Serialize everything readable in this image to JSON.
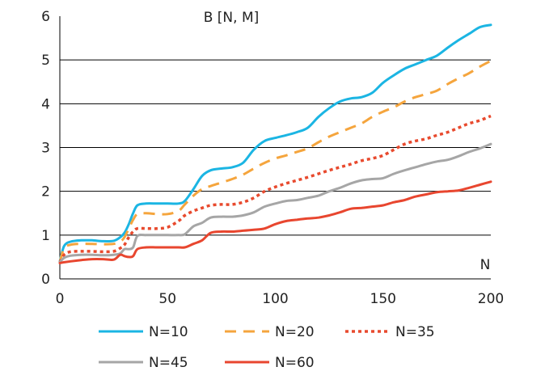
{
  "chart_data": {
    "type": "line",
    "title": "B [N, M]",
    "xlabel": "N",
    "ylabel": "",
    "xlim": [
      0,
      200
    ],
    "ylim": [
      0,
      6
    ],
    "xticks": [
      0,
      50,
      100,
      150,
      200
    ],
    "yticks": [
      0,
      1,
      2,
      3,
      4,
      5,
      6
    ],
    "grid": "horizontal",
    "legend_position": "bottom",
    "series": [
      {
        "name": "N=10",
        "color": "#1BB5E3",
        "dash": "solid",
        "x": [
          0,
          2,
          5,
          10,
          15,
          20,
          25,
          28,
          30,
          32,
          34,
          36,
          40,
          45,
          50,
          55,
          58,
          62,
          66,
          70,
          75,
          80,
          85,
          90,
          95,
          100,
          105,
          110,
          115,
          120,
          125,
          130,
          135,
          140,
          145,
          150,
          155,
          160,
          165,
          170,
          175,
          180,
          185,
          190,
          195,
          200
        ],
        "values": [
          0.4,
          0.75,
          0.85,
          0.88,
          0.88,
          0.86,
          0.87,
          0.95,
          1.05,
          1.25,
          1.5,
          1.68,
          1.72,
          1.72,
          1.72,
          1.72,
          1.78,
          2.05,
          2.35,
          2.48,
          2.52,
          2.55,
          2.65,
          2.95,
          3.15,
          3.22,
          3.28,
          3.35,
          3.45,
          3.7,
          3.9,
          4.05,
          4.12,
          4.15,
          4.25,
          4.48,
          4.65,
          4.8,
          4.9,
          5.0,
          5.1,
          5.28,
          5.45,
          5.6,
          5.75,
          5.8
        ]
      },
      {
        "name": "N=20",
        "color": "#F5A53D",
        "dash": "long-dash",
        "x": [
          0,
          2,
          5,
          10,
          15,
          20,
          25,
          28,
          30,
          32,
          34,
          36,
          40,
          45,
          50,
          55,
          58,
          62,
          66,
          70,
          75,
          80,
          85,
          90,
          95,
          100,
          105,
          110,
          115,
          120,
          125,
          130,
          135,
          140,
          145,
          150,
          155,
          160,
          165,
          170,
          175,
          180,
          185,
          190,
          195,
          200
        ],
        "values": [
          0.38,
          0.7,
          0.78,
          0.8,
          0.8,
          0.79,
          0.8,
          0.85,
          0.95,
          1.15,
          1.35,
          1.48,
          1.5,
          1.48,
          1.48,
          1.55,
          1.7,
          1.9,
          2.05,
          2.12,
          2.2,
          2.28,
          2.38,
          2.52,
          2.65,
          2.75,
          2.82,
          2.9,
          2.98,
          3.12,
          3.25,
          3.35,
          3.45,
          3.55,
          3.7,
          3.82,
          3.92,
          4.05,
          4.15,
          4.22,
          4.3,
          4.45,
          4.58,
          4.7,
          4.85,
          4.98
        ]
      },
      {
        "name": "N=35",
        "color": "#E84A2E",
        "dash": "dotted",
        "x": [
          0,
          2,
          5,
          10,
          15,
          20,
          25,
          28,
          30,
          32,
          34,
          36,
          40,
          45,
          50,
          55,
          58,
          62,
          66,
          70,
          75,
          80,
          85,
          90,
          95,
          100,
          105,
          110,
          115,
          120,
          125,
          130,
          135,
          140,
          145,
          150,
          155,
          160,
          165,
          170,
          175,
          180,
          185,
          190,
          195,
          200
        ],
        "values": [
          0.38,
          0.55,
          0.62,
          0.63,
          0.63,
          0.62,
          0.63,
          0.7,
          0.78,
          0.95,
          1.08,
          1.15,
          1.15,
          1.15,
          1.18,
          1.32,
          1.45,
          1.55,
          1.62,
          1.68,
          1.7,
          1.7,
          1.75,
          1.85,
          2.0,
          2.1,
          2.18,
          2.25,
          2.32,
          2.4,
          2.48,
          2.55,
          2.62,
          2.7,
          2.75,
          2.82,
          2.95,
          3.08,
          3.15,
          3.2,
          3.28,
          3.35,
          3.45,
          3.55,
          3.62,
          3.72
        ]
      },
      {
        "name": "N=45",
        "color": "#A6A6A6",
        "dash": "solid",
        "x": [
          0,
          2,
          5,
          10,
          15,
          20,
          25,
          28,
          30,
          32,
          34,
          36,
          40,
          45,
          50,
          55,
          58,
          62,
          66,
          70,
          75,
          80,
          85,
          90,
          95,
          100,
          105,
          110,
          115,
          120,
          125,
          130,
          135,
          140,
          145,
          150,
          155,
          160,
          165,
          170,
          175,
          180,
          185,
          190,
          195,
          200
        ],
        "values": [
          0.38,
          0.48,
          0.53,
          0.55,
          0.55,
          0.54,
          0.55,
          0.58,
          0.68,
          0.68,
          0.72,
          0.98,
          1.0,
          1.0,
          1.0,
          1.0,
          1.02,
          1.2,
          1.28,
          1.4,
          1.42,
          1.42,
          1.45,
          1.52,
          1.65,
          1.72,
          1.78,
          1.8,
          1.85,
          1.9,
          2.0,
          2.08,
          2.18,
          2.25,
          2.28,
          2.3,
          2.4,
          2.48,
          2.55,
          2.62,
          2.68,
          2.72,
          2.8,
          2.9,
          2.98,
          3.08
        ]
      },
      {
        "name": "N=60",
        "color": "#E8462F",
        "dash": "solid",
        "x": [
          0,
          2,
          5,
          10,
          15,
          20,
          25,
          28,
          30,
          32,
          34,
          36,
          40,
          45,
          50,
          55,
          58,
          62,
          66,
          70,
          75,
          80,
          85,
          90,
          95,
          100,
          105,
          110,
          115,
          120,
          125,
          130,
          135,
          140,
          145,
          150,
          155,
          160,
          165,
          170,
          175,
          180,
          185,
          190,
          195,
          200
        ],
        "values": [
          0.36,
          0.38,
          0.4,
          0.43,
          0.45,
          0.45,
          0.44,
          0.55,
          0.52,
          0.5,
          0.52,
          0.68,
          0.72,
          0.72,
          0.72,
          0.72,
          0.72,
          0.8,
          0.88,
          1.05,
          1.08,
          1.08,
          1.1,
          1.12,
          1.15,
          1.25,
          1.32,
          1.35,
          1.38,
          1.4,
          1.45,
          1.52,
          1.6,
          1.62,
          1.65,
          1.68,
          1.75,
          1.8,
          1.88,
          1.93,
          1.98,
          2.0,
          2.02,
          2.08,
          2.15,
          2.22
        ]
      }
    ]
  }
}
